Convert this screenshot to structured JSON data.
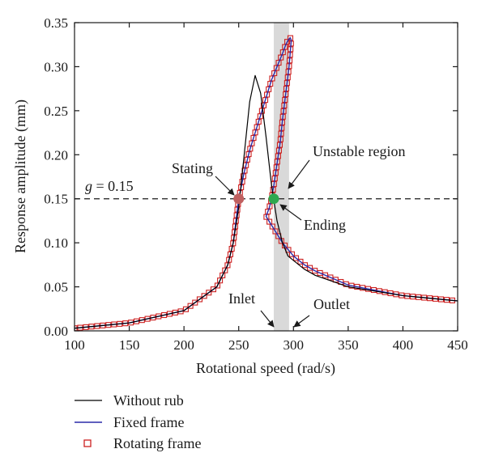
{
  "chart_data": {
    "type": "line",
    "xlabel": "Rotational speed (rad/s)",
    "ylabel": "Response amplitude (mm)",
    "xlim": [
      100,
      450
    ],
    "ylim": [
      0,
      0.35
    ],
    "xticks": [
      "100",
      "150",
      "200",
      "250",
      "300",
      "350",
      "400",
      "450"
    ],
    "yticks": [
      "0.00",
      "0.05",
      "0.10",
      "0.15",
      "0.20",
      "0.25",
      "0.30",
      "0.35"
    ],
    "threshold": {
      "value": 0.15,
      "label_var": "g",
      "label_rest": " = 0.15"
    },
    "unstable_region": {
      "x": [
        282,
        296
      ],
      "color": "#d9d9d9"
    },
    "series": [
      {
        "name": "Without rub",
        "color": "#000000",
        "style": "line",
        "x": [
          100,
          150,
          200,
          230,
          240,
          245,
          250,
          255,
          260,
          265,
          270,
          275,
          280,
          285,
          290,
          295,
          300,
          310,
          320,
          350,
          400,
          450
        ],
        "y": [
          0.003,
          0.009,
          0.023,
          0.05,
          0.075,
          0.1,
          0.14,
          0.2,
          0.26,
          0.29,
          0.27,
          0.22,
          0.165,
          0.125,
          0.1,
          0.085,
          0.08,
          0.07,
          0.063,
          0.05,
          0.04,
          0.034
        ]
      },
      {
        "name": "Fixed frame",
        "color": "#2a2aa8",
        "style": "line",
        "x": [
          100,
          150,
          200,
          230,
          240,
          245,
          250,
          255,
          260,
          265,
          270,
          275,
          280,
          285,
          290,
          293,
          295,
          297,
          298,
          296,
          293,
          290,
          288,
          285,
          282,
          280,
          278,
          275,
          290,
          300,
          310,
          320,
          350,
          400,
          450
        ],
        "y": [
          0.003,
          0.009,
          0.023,
          0.05,
          0.075,
          0.1,
          0.15,
          0.18,
          0.205,
          0.225,
          0.245,
          0.265,
          0.285,
          0.3,
          0.315,
          0.325,
          0.33,
          0.333,
          0.33,
          0.3,
          0.27,
          0.24,
          0.215,
          0.19,
          0.165,
          0.15,
          0.14,
          0.13,
          0.1,
          0.085,
          0.075,
          0.068,
          0.052,
          0.04,
          0.034
        ]
      },
      {
        "name": "Rotating frame",
        "color": "#cc2020",
        "style": "square-marker",
        "x": [
          100,
          150,
          200,
          230,
          240,
          245,
          250,
          255,
          260,
          265,
          270,
          275,
          280,
          285,
          290,
          293,
          295,
          297,
          298,
          296,
          293,
          290,
          288,
          285,
          282,
          280,
          278,
          275,
          290,
          300,
          310,
          320,
          350,
          400,
          450
        ],
        "y": [
          0.003,
          0.009,
          0.023,
          0.05,
          0.075,
          0.1,
          0.15,
          0.18,
          0.205,
          0.225,
          0.245,
          0.265,
          0.285,
          0.3,
          0.315,
          0.325,
          0.33,
          0.333,
          0.33,
          0.3,
          0.27,
          0.24,
          0.215,
          0.19,
          0.165,
          0.15,
          0.14,
          0.13,
          0.1,
          0.085,
          0.075,
          0.068,
          0.052,
          0.04,
          0.034
        ]
      }
    ],
    "points": [
      {
        "label": "Stating",
        "x": 250,
        "y": 0.15,
        "color": "#c06060"
      },
      {
        "label": "Ending",
        "x": 282,
        "y": 0.15,
        "color": "#2fa84f"
      }
    ],
    "annotations": [
      {
        "text": "Unstable region"
      },
      {
        "text": "Inlet",
        "x": 282
      },
      {
        "text": "Outlet",
        "x": 296
      }
    ],
    "grid": false,
    "legend_position": "bottom-left"
  }
}
